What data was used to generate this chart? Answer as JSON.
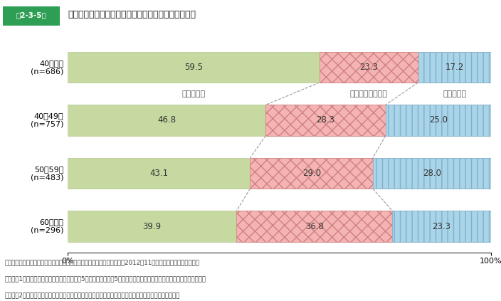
{
  "title_badge": "第2-3-5図",
  "title_text": "事業承継時の現経営者年齢別の事業承継後の業績推移",
  "categories": [
    "40歳未満\n(n=686)",
    "40～49歳\n(n=757)",
    "50～59歳\n(n=483)",
    "60歳以上\n(n=296)"
  ],
  "values": [
    [
      59.5,
      23.3,
      17.2
    ],
    [
      46.8,
      28.3,
      25.0
    ],
    [
      43.1,
      29.0,
      28.0
    ],
    [
      39.9,
      36.8,
      23.3
    ]
  ],
  "colors": [
    "#c5d9a0",
    "#f4b4b4",
    "#aad4e8"
  ],
  "hatch_ec": [
    "#a8c080",
    "#d08080",
    "#80b0cc"
  ],
  "hatch_patterns": [
    "",
    "xx",
    "||"
  ],
  "legend_labels": [
    "良くなった",
    "あまり変わらない",
    "悪くなった"
  ],
  "footer_lines": [
    "資料：中小企業庁委託「中小企業の事業承継に関するアンケート調査」（2012年11月、（株）野村総合研究所）",
    "（注）　1．事業承継後の業績推移は、承継後5年間程度（承継後5年未満の企業は回答時点まで。）の実績による回答。",
    "　　　　2．「良くなった」には「やや良くなった」を、「悪くなった」には「やや悪くなった」を含む。"
  ],
  "bar_height": 0.58,
  "background_color": "#ffffff",
  "header_green": "#2e9e55",
  "line_green": "#4aaa5a",
  "dash_color": "#999999"
}
